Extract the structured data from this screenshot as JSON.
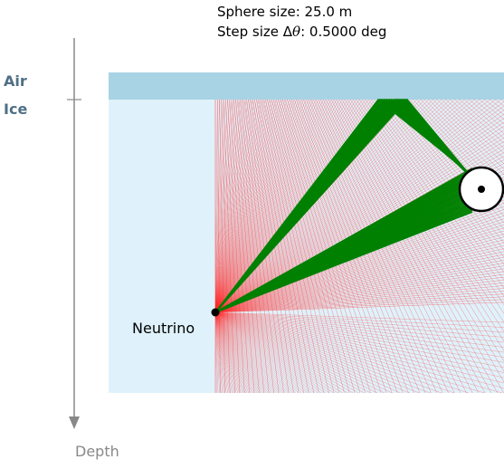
{
  "info": {
    "sphere_size": "Sphere size: 25.0 m",
    "step_size_prefix": "Step size Δ",
    "step_size_symbol": "θ",
    "step_size_suffix": ": 0.5000 deg"
  },
  "media": {
    "air_label": "Air",
    "ice_label": "Ice",
    "air_color": "#a8d3e4",
    "ice_color": "#dff2fb"
  },
  "axis": {
    "depth_label": "Depth"
  },
  "source": {
    "label": "Neutrino"
  },
  "colors": {
    "ray_color": "#ff2a2a",
    "hit_color": "#008000",
    "axis_color": "#888888"
  }
}
